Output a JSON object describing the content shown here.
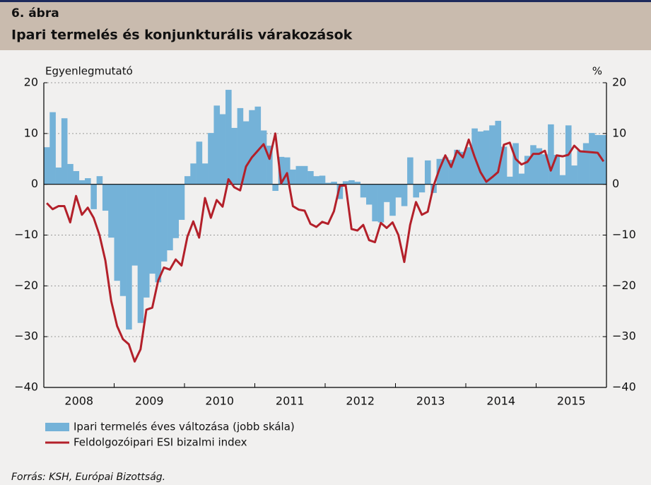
{
  "chart_data": {
    "type": "bar_line",
    "label": "6. ábra",
    "title": "Ipari termelés és konjunkturális várakozások",
    "ylabel": "Egyenlegmutató",
    "y2label": "%",
    "source": "Forrás: KSH, Európai Bizottság.",
    "categories": [
      null,
      null,
      null,
      null,
      null,
      "2008",
      null,
      null,
      null,
      null,
      null,
      null,
      null,
      null,
      null,
      null,
      null,
      "2009",
      null,
      null,
      null,
      null,
      null,
      null,
      null,
      null,
      null,
      null,
      null,
      "2010",
      null,
      null,
      null,
      null,
      null,
      null,
      null,
      null,
      null,
      null,
      null,
      "2011",
      null,
      null,
      null,
      null,
      null,
      null,
      null,
      null,
      null,
      null,
      null,
      "2012",
      null,
      null,
      null,
      null,
      null,
      null,
      null,
      null,
      null,
      null,
      null,
      "2013",
      null,
      null,
      null,
      null,
      null,
      null,
      null,
      null,
      null,
      null,
      null,
      "2014",
      null,
      null,
      null,
      null,
      null,
      null,
      null,
      null,
      null,
      null,
      null,
      "2015",
      null,
      null,
      null,
      null,
      null,
      null
    ],
    "series": [
      {
        "name": "Ipari termelés éves változása (jobb skála)",
        "kind": "bar",
        "axis": "y2",
        "color": "#74b2d8",
        "values": [
          7.3,
          14.2,
          3.3,
          13,
          4,
          2.6,
          0.8,
          1.2,
          -4.9,
          1.6,
          -5.2,
          -10.5,
          -19,
          -22,
          -28.6,
          -16,
          -27.3,
          -22.3,
          -17.6,
          -19.3,
          -15.2,
          -13,
          -10.6,
          -7,
          1.6,
          4.1,
          8.4,
          4.1,
          10.1,
          15.5,
          13.8,
          18.6,
          11.1,
          15,
          12.4,
          14.6,
          15.3,
          10.6,
          7.6,
          -1.3,
          5.4,
          5.3,
          2.9,
          3.6,
          3.6,
          2.6,
          1.6,
          1.7,
          0.3,
          0.5,
          -2.9,
          0.6,
          0.8,
          0.5,
          -2.6,
          -4,
          -7.3,
          -7.5,
          -3.5,
          -6.2,
          -2.6,
          -4.3,
          5.3,
          -2.6,
          -1.6,
          4.7,
          -1.7,
          5,
          5.3,
          4.8,
          6.8,
          6.4,
          7.3,
          11,
          10.4,
          10.6,
          11.6,
          12.5,
          7.4,
          1.5,
          8.1,
          2.1,
          5.6,
          7.7,
          7.1,
          5.9,
          11.8,
          5.8,
          1.8,
          11.6,
          3.7,
          6.7,
          8.1,
          10.1,
          9.7,
          9.7
        ]
      },
      {
        "name": "Feldolgozóipari ESI bizalmi index",
        "kind": "line",
        "axis": "y",
        "color": "#b3202a",
        "values": [
          -3.7,
          -4.9,
          -4.3,
          -4.3,
          -7.5,
          -2.3,
          -6,
          -4.6,
          -6.6,
          -10,
          -15,
          -23,
          -27.9,
          -30.5,
          -31.5,
          -34.9,
          -32.5,
          -24.7,
          -24.3,
          -19,
          -16.4,
          -16.8,
          -14.8,
          -16,
          -10.3,
          -7.3,
          -10.5,
          -2.7,
          -6.6,
          -3.1,
          -4.4,
          1,
          -0.6,
          -1.2,
          3.5,
          5.3,
          6.6,
          7.9,
          5,
          10,
          0.2,
          2.2,
          -4.3,
          -5,
          -5.2,
          -7.8,
          -8.4,
          -7.4,
          -7.8,
          -5.3,
          -0.3,
          -0.2,
          -8.8,
          -9.1,
          -8,
          -11,
          -11.4,
          -7.6,
          -8.6,
          -7.5,
          -10,
          -15.3,
          -8,
          -3.5,
          -6,
          -5.4,
          -0.3,
          3,
          5.7,
          3.4,
          6.6,
          5.3,
          8.8,
          5.4,
          2.4,
          0.5,
          1.4,
          2.4,
          7.8,
          8.2,
          5,
          3.9,
          4.4,
          6,
          6,
          6.6,
          2.7,
          5.7,
          5.5,
          5.8,
          7.6,
          6.5,
          6.4,
          6.3,
          6.2,
          4.5
        ]
      }
    ],
    "ylim": [
      -40,
      20
    ],
    "yticks": [
      {
        "value": -40,
        "label": "−40"
      },
      {
        "value": -30,
        "label": "−30"
      },
      {
        "value": -20,
        "label": "−20"
      },
      {
        "value": -10,
        "label": "−10"
      },
      0,
      10,
      20
    ],
    "y2lim": [
      -40,
      20
    ],
    "y2ticks": [
      {
        "value": -40,
        "label": "−40"
      },
      {
        "value": -30,
        "label": "−30"
      },
      {
        "value": -20,
        "label": "−20"
      },
      {
        "value": -10,
        "label": "−10"
      },
      0,
      10,
      20
    ],
    "grid": true,
    "legend": "bottom-left"
  }
}
